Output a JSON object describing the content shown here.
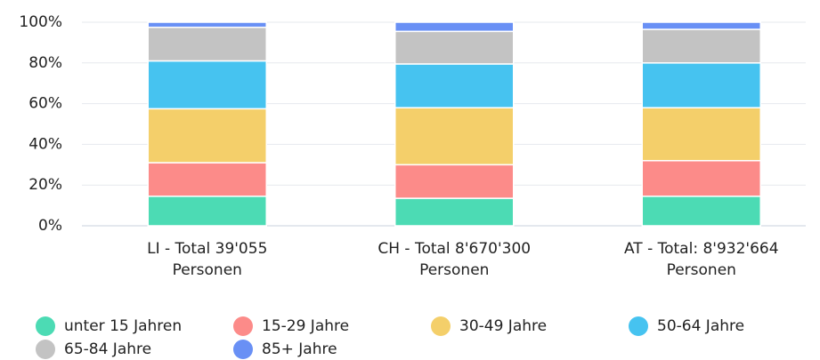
{
  "chart_data": {
    "type": "stacked_bar_100",
    "categories": [
      "LI - Total 39'055 Personen",
      "CH - Total 8'670'300 Personen",
      "AT - Total: 8'932'664 Personen"
    ],
    "series": [
      {
        "name": "unter 15 Jahren",
        "color": "#4cdbb4",
        "values": [
          14.5,
          13.5,
          14.5
        ]
      },
      {
        "name": "15-29 Jahre",
        "color": "#fc8b89",
        "values": [
          16.5,
          16.5,
          17.5
        ]
      },
      {
        "name": "30-49 Jahre",
        "color": "#f4cf6a",
        "values": [
          26.5,
          28,
          26
        ]
      },
      {
        "name": "50-64 Jahre",
        "color": "#46c3f0",
        "values": [
          23.5,
          21.5,
          22
        ]
      },
      {
        "name": "65-84 Jahre",
        "color": "#c3c3c3",
        "values": [
          16.5,
          16,
          16.5
        ]
      },
      {
        "name": "85+ Jahre",
        "color": "#6990f5",
        "values": [
          2.5,
          4.5,
          3.5
        ]
      }
    ],
    "ylim": [
      0,
      100
    ],
    "yticks": [
      {
        "value": 0,
        "label": "0%"
      },
      {
        "value": 20,
        "label": "20%"
      },
      {
        "value": 40,
        "label": "40%"
      },
      {
        "value": 60,
        "label": "60%"
      },
      {
        "value": 80,
        "label": "80%"
      },
      {
        "value": 100,
        "label": "100%"
      }
    ],
    "grid": true,
    "legend": "bottom"
  }
}
